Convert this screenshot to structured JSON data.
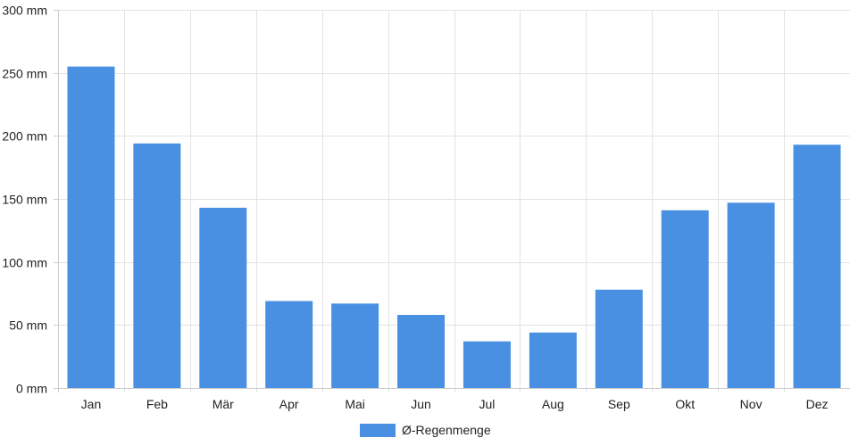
{
  "chart_data": {
    "type": "bar",
    "categories": [
      "Jan",
      "Feb",
      "Mär",
      "Apr",
      "Mai",
      "Jun",
      "Jul",
      "Aug",
      "Sep",
      "Okt",
      "Nov",
      "Dez"
    ],
    "series": [
      {
        "name": "Ø-Regenmenge",
        "color": "#4a90e2",
        "values": [
          255,
          194,
          143,
          69,
          67,
          58,
          37,
          44,
          78,
          141,
          147,
          193
        ]
      }
    ],
    "ylim": [
      0,
      300
    ],
    "yticks": [
      0,
      50,
      100,
      150,
      200,
      250,
      300
    ],
    "ytick_labels": [
      "0 mm",
      "50 mm",
      "100 mm",
      "150 mm",
      "200 mm",
      "250 mm",
      "300 mm"
    ],
    "grid": true,
    "legend_position": "bottom-center",
    "title": "",
    "xlabel": "",
    "ylabel": ""
  }
}
